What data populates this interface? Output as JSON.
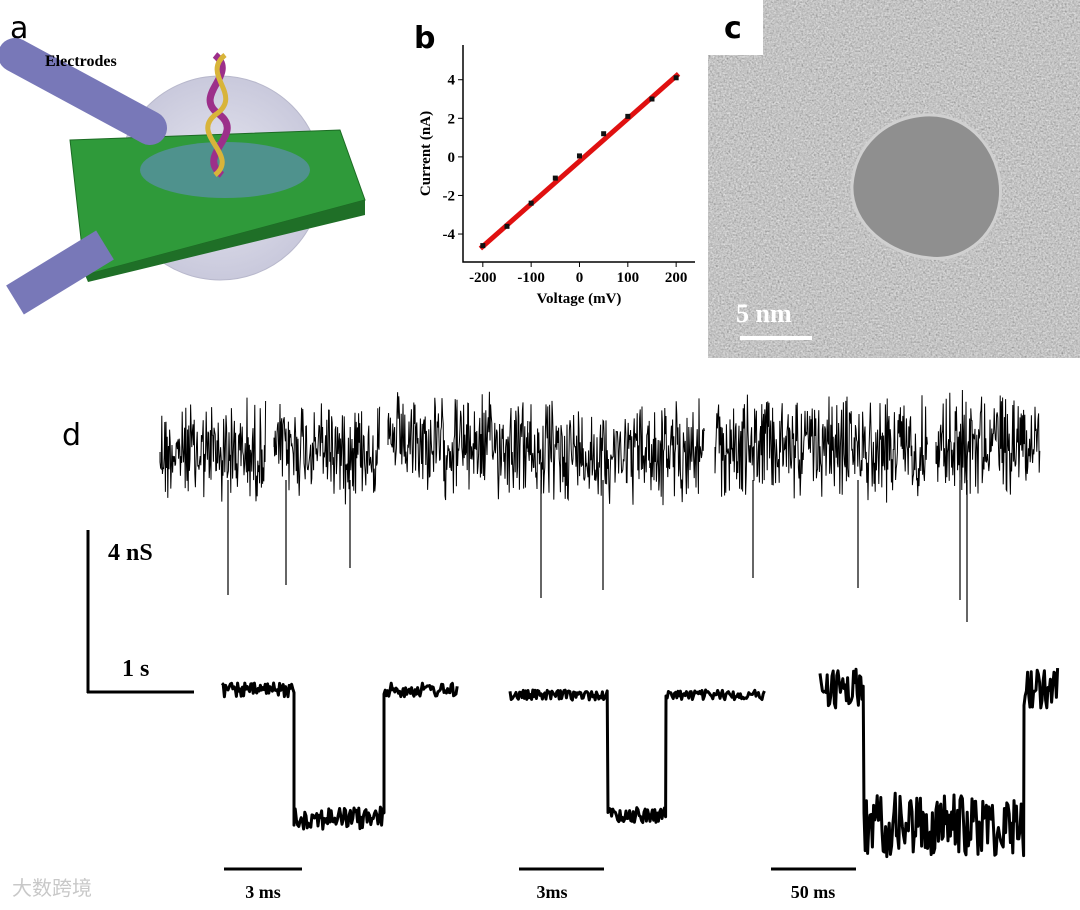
{
  "figure": {
    "panel_a": {
      "label": "a",
      "annotation": "Electrodes"
    },
    "panel_b": {
      "label": "b"
    },
    "panel_c": {
      "label": "c",
      "scale_bar": "5 nm"
    },
    "panel_d": {
      "label": "d",
      "scale_y": "4 nS",
      "scale_x": "1 s",
      "event_scales": [
        "3 ms",
        "3ms",
        "50 ms"
      ]
    },
    "watermark": "大数跨境"
  },
  "chart_data": {
    "type": "scatter",
    "x_label": "Voltage (mV)",
    "y_label": "Current (nA)",
    "x": [
      -200,
      -150,
      -100,
      -50,
      0,
      50,
      100,
      150,
      200
    ],
    "values": [
      -4.6,
      -3.6,
      -2.4,
      -1.1,
      0.05,
      1.2,
      2.1,
      3.0,
      4.1
    ],
    "color": "#111111",
    "fit_line": {
      "x": [
        -205,
        205
      ],
      "values": [
        -4.75,
        4.3
      ],
      "color": "#e01010"
    },
    "xlim": [
      -241,
      239
    ],
    "ylim": [
      -5.45,
      5.8
    ],
    "xticks": [
      -200,
      -100,
      0,
      100,
      200
    ],
    "yticks": [
      -4,
      -2,
      0,
      2,
      4
    ]
  }
}
